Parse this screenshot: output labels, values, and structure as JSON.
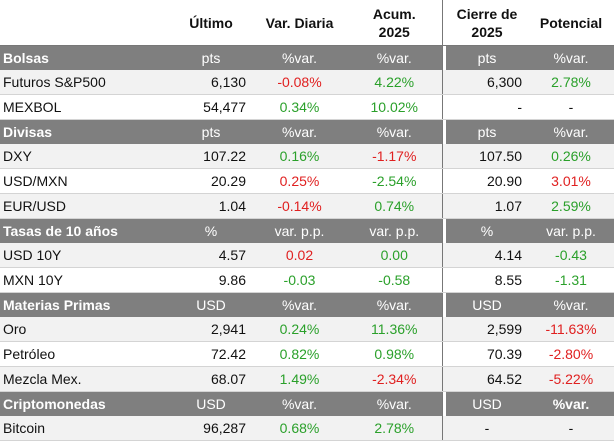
{
  "headers": {
    "ultimo": "Último",
    "var_diaria": "Var. Diaria",
    "acum_line1": "Acum.",
    "acum_line2": "2025",
    "cierre_line1": "Cierre de",
    "cierre_line2": "2025",
    "potencial": "Potencial"
  },
  "sections": {
    "bolsas": {
      "label": "Bolsas",
      "u1": "pts",
      "u2": "%var.",
      "u3": "%var.",
      "u4": "pts",
      "u5": "%var."
    },
    "divisas": {
      "label": "Divisas",
      "u1": "pts",
      "u2": "%var.",
      "u3": "%var.",
      "u4": "pts",
      "u5": "%var."
    },
    "tasas": {
      "label": "Tasas de 10 años",
      "u1": "%",
      "u2": "var. p.p.",
      "u3": "var. p.p.",
      "u4": "%",
      "u5": "var. p.p."
    },
    "materias": {
      "label": "Materias Primas",
      "u1": "USD",
      "u2": "%var.",
      "u3": "%var.",
      "u4": "USD",
      "u5": "%var."
    },
    "cripto": {
      "label": "Criptomonedas",
      "u1": "USD",
      "u2": "%var.",
      "u3": "%var.",
      "u4": "USD",
      "u5": "%var."
    }
  },
  "rows": {
    "sp500": {
      "name": "Futuros S&P500",
      "ultimo": "6,130",
      "var_diaria": "-0.08%",
      "acum": "4.22%",
      "cierre": "6,300",
      "potencial": "2.78%"
    },
    "mexbol": {
      "name": "MEXBOL",
      "ultimo": "54,477",
      "var_diaria": "0.34%",
      "acum": "10.02%",
      "cierre": "-",
      "potencial": "-"
    },
    "dxy": {
      "name": "DXY",
      "ultimo": "107.22",
      "var_diaria": "0.16%",
      "acum": "-1.17%",
      "cierre": "107.50",
      "potencial": "0.26%"
    },
    "usdmxn": {
      "name": "USD/MXN",
      "ultimo": "20.29",
      "var_diaria": "0.25%",
      "acum": "-2.54%",
      "cierre": "20.90",
      "potencial": "3.01%"
    },
    "eurusd": {
      "name": "EUR/USD",
      "ultimo": "1.04",
      "var_diaria": "-0.14%",
      "acum": "0.74%",
      "cierre": "1.07",
      "potencial": "2.59%"
    },
    "usd10y": {
      "name": "USD 10Y",
      "ultimo": "4.57",
      "var_diaria": "0.02",
      "acum": "0.00",
      "cierre": "4.14",
      "potencial": "-0.43"
    },
    "mxn10y": {
      "name": "MXN 10Y",
      "ultimo": "9.86",
      "var_diaria": "-0.03",
      "acum": "-0.58",
      "cierre": "8.55",
      "potencial": "-1.31"
    },
    "oro": {
      "name": "Oro",
      "ultimo": "2,941",
      "var_diaria": "0.24%",
      "acum": "11.36%",
      "cierre": "2,599",
      "potencial": "-11.63%"
    },
    "petroleo": {
      "name": "Petróleo",
      "ultimo": "72.42",
      "var_diaria": "0.82%",
      "acum": "0.98%",
      "cierre": "70.39",
      "potencial": "-2.80%"
    },
    "mezcla": {
      "name": "Mezcla Mex.",
      "ultimo": "68.07",
      "var_diaria": "1.49%",
      "acum": "-2.34%",
      "cierre": "64.52",
      "potencial": "-5.22%"
    },
    "bitcoin": {
      "name": "Bitcoin",
      "ultimo": "96,287",
      "var_diaria": "0.68%",
      "acum": "2.78%",
      "cierre": "-",
      "potencial": "-"
    }
  },
  "colors": {
    "negative": "#e02020",
    "positive": "#2aa02a",
    "section_bg": "#7f7f7f",
    "alt_row_bg": "#f2f2f2"
  }
}
